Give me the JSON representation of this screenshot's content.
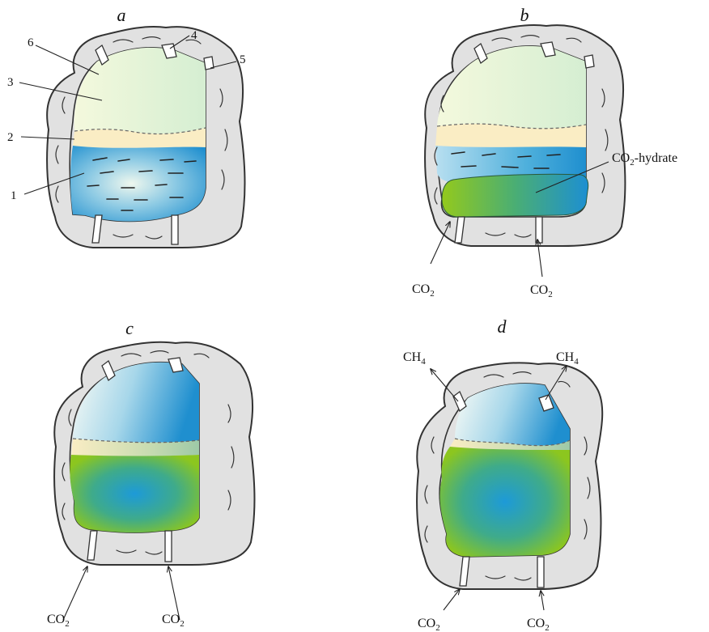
{
  "panels": [
    {
      "letter": "a"
    },
    {
      "letter": "b"
    },
    {
      "letter": "c"
    },
    {
      "letter": "d"
    }
  ],
  "component_numbers": [
    "1",
    "2",
    "3",
    "4",
    "5",
    "6"
  ],
  "labels": {
    "co2_hydrate": {
      "main": "CO",
      "sub": "2",
      "tail": "-hydrate"
    },
    "co2": {
      "main": "CO",
      "sub": "2"
    },
    "ch4": {
      "main": "CH",
      "sub": "4"
    }
  },
  "colors": {
    "gas_light": "#f2f8df",
    "gas_green": "#d6efd3",
    "interlayer": "#faedc4",
    "water_light": "#ecf6ef",
    "water_blue": "#1f8fcf",
    "hydrate_green": "#8cc61f",
    "hydrate_blue": "#1d8fd2",
    "rock": "#e1e1e1"
  }
}
